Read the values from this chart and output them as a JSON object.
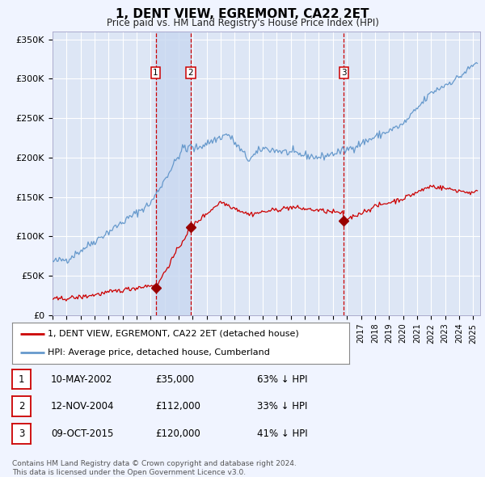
{
  "title": "1, DENT VIEW, EGREMONT, CA22 2ET",
  "subtitle": "Price paid vs. HM Land Registry's House Price Index (HPI)",
  "ylim": [
    0,
    360000
  ],
  "yticks": [
    0,
    50000,
    100000,
    150000,
    200000,
    250000,
    300000,
    350000
  ],
  "ytick_labels": [
    "£0",
    "£50K",
    "£100K",
    "£150K",
    "£200K",
    "£250K",
    "£300K",
    "£350K"
  ],
  "xlim_start": 1995.0,
  "xlim_end": 2025.5,
  "background_color": "#f0f4ff",
  "plot_bg_color": "#dde6f5",
  "grid_color": "#ffffff",
  "red_line_color": "#cc0000",
  "blue_line_color": "#6699cc",
  "purchase_marker_color": "#990000",
  "vline_color": "#cc0000",
  "shade_color": "#c8d8f0",
  "transactions": [
    {
      "id": 1,
      "date_dec": 2002.36,
      "price": 35000,
      "label": "10-MAY-2002",
      "hpi_pct": "63% ↓ HPI"
    },
    {
      "id": 2,
      "date_dec": 2004.87,
      "price": 112000,
      "label": "12-NOV-2004",
      "hpi_pct": "33% ↓ HPI"
    },
    {
      "id": 3,
      "date_dec": 2015.77,
      "price": 120000,
      "label": "09-OCT-2015",
      "hpi_pct": "41% ↓ HPI"
    }
  ],
  "legend_red": "1, DENT VIEW, EGREMONT, CA22 2ET (detached house)",
  "legend_blue": "HPI: Average price, detached house, Cumberland",
  "table_rows": [
    [
      "1",
      "10-MAY-2002",
      "£35,000",
      "63% ↓ HPI"
    ],
    [
      "2",
      "12-NOV-2004",
      "£112,000",
      "33% ↓ HPI"
    ],
    [
      "3",
      "09-OCT-2015",
      "£120,000",
      "41% ↓ HPI"
    ]
  ],
  "footnote_line1": "Contains HM Land Registry data © Crown copyright and database right 2024.",
  "footnote_line2": "This data is licensed under the Open Government Licence v3.0."
}
